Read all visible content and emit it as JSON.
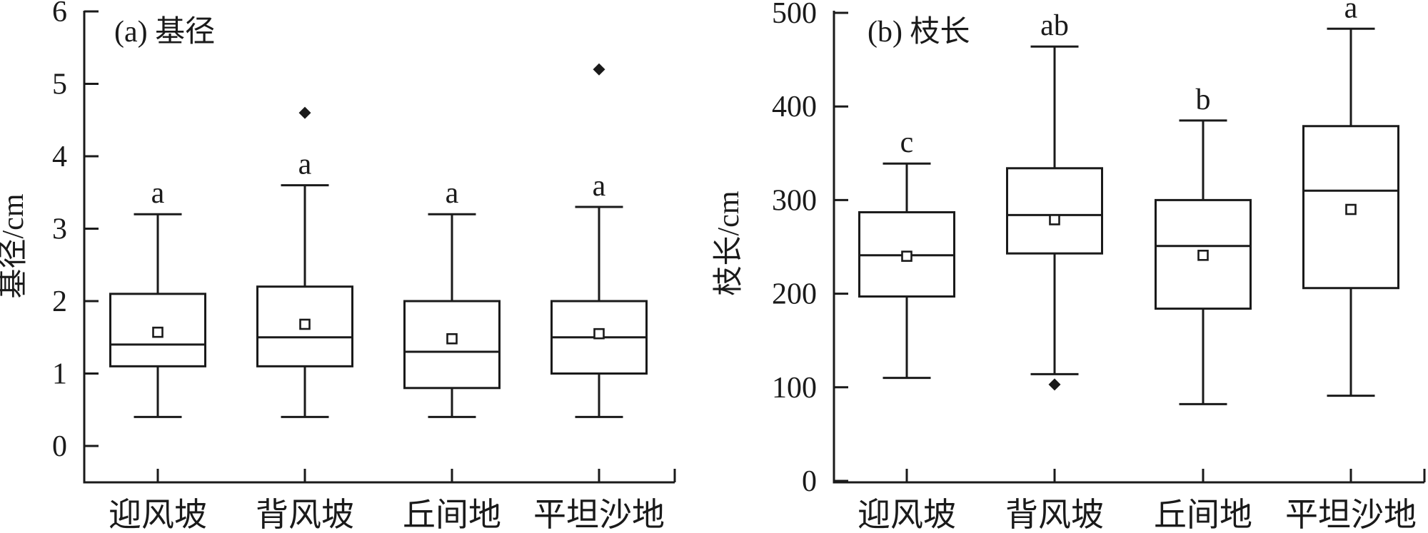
{
  "figure_name": "boxplot-figure",
  "colors": {
    "line": "#1a1a1a",
    "background": "#ffffff",
    "box_fill": "#ffffff"
  },
  "chart_data": [
    {
      "type": "boxplot",
      "title": "(a) 基径",
      "ylabel": "基径/cm",
      "xlabel": "",
      "ylim": [
        0,
        6
      ],
      "yticks": [
        0,
        1,
        2,
        3,
        4,
        5,
        6
      ],
      "grid": false,
      "legend": "none",
      "categories": [
        "迎风坡",
        "背风坡",
        "丘间地",
        "平坦沙地"
      ],
      "series": [
        {
          "category": "迎风坡",
          "whisker_low": 0.4,
          "q1": 1.1,
          "median": 1.4,
          "mean": 1.57,
          "q3": 2.1,
          "whisker_high": 3.2,
          "outliers": [],
          "sig_label": "a"
        },
        {
          "category": "背风坡",
          "whisker_low": 0.4,
          "q1": 1.1,
          "median": 1.5,
          "mean": 1.68,
          "q3": 2.2,
          "whisker_high": 3.6,
          "outliers": [
            4.6
          ],
          "sig_label": "a"
        },
        {
          "category": "丘间地",
          "whisker_low": 0.4,
          "q1": 0.8,
          "median": 1.3,
          "mean": 1.48,
          "q3": 2.0,
          "whisker_high": 3.2,
          "outliers": [],
          "sig_label": "a"
        },
        {
          "category": "平坦沙地",
          "whisker_low": 0.4,
          "q1": 1.0,
          "median": 1.5,
          "mean": 1.55,
          "q3": 2.0,
          "whisker_high": 3.3,
          "outliers": [
            5.2
          ],
          "sig_label": "a"
        }
      ]
    },
    {
      "type": "boxplot",
      "title": "(b) 枝长",
      "ylabel": "枝长/cm",
      "xlabel": "",
      "ylim": [
        0,
        500
      ],
      "yticks": [
        0,
        100,
        200,
        300,
        400,
        500
      ],
      "grid": false,
      "legend": "none",
      "categories": [
        "迎风坡",
        "背风坡",
        "丘间地",
        "平坦沙地"
      ],
      "series": [
        {
          "category": "迎风坡",
          "whisker_low": 110,
          "q1": 197,
          "median": 241,
          "mean": 240,
          "q3": 287,
          "whisker_high": 339,
          "outliers": [],
          "sig_label": "c"
        },
        {
          "category": "背风坡",
          "whisker_low": 114,
          "q1": 243,
          "median": 284,
          "mean": 279,
          "q3": 334,
          "whisker_high": 464,
          "outliers": [
            103
          ],
          "sig_label": "ab"
        },
        {
          "category": "丘间地",
          "whisker_low": 82,
          "q1": 184,
          "median": 251,
          "mean": 241,
          "q3": 300,
          "whisker_high": 385,
          "outliers": [],
          "sig_label": "b"
        },
        {
          "category": "平坦沙地",
          "whisker_low": 91,
          "q1": 206,
          "median": 310,
          "mean": 290,
          "q3": 379,
          "whisker_high": 483,
          "outliers": [],
          "sig_label": "a"
        }
      ]
    }
  ]
}
